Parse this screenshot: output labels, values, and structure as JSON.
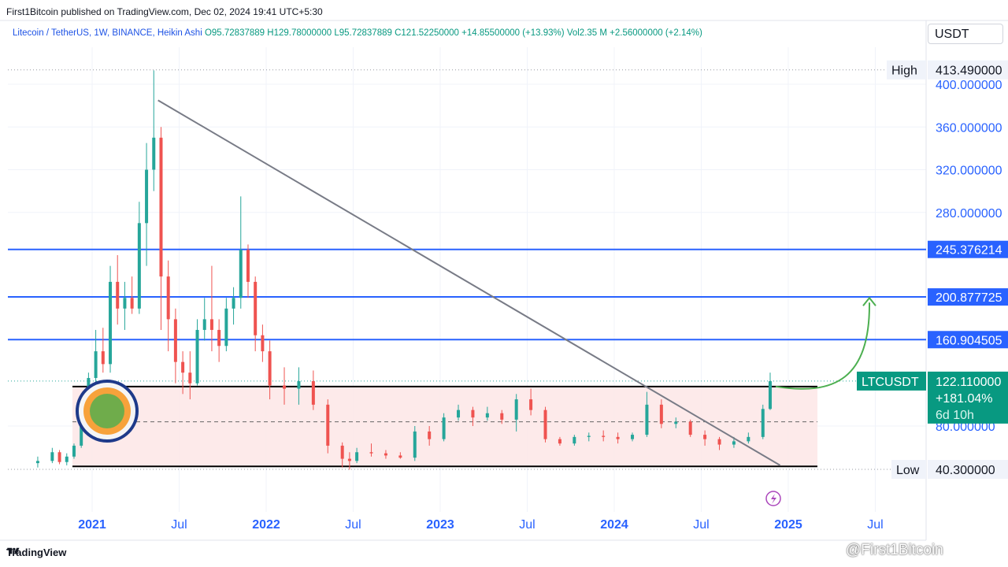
{
  "header": {
    "published": "First1Bitcoin published on TradingView.com, Dec 02, 2024 19:41 UTC+5:30"
  },
  "legend": {
    "symbol": "Litecoin / TetherUS, 1W, BINANCE, Heikin Ashi",
    "open": "O95.72837889",
    "high": "H129.78000000",
    "low": "L95.72837889",
    "close": "C121.52250000",
    "change": "+14.85500000 (+13.93%)",
    "volume": "Vol2.35 M",
    "vol_change": "+2.56000000 (+2.14%)"
  },
  "currency": "USDT",
  "footer": {
    "brand": "TradingView"
  },
  "watermark": "@First1Bitcoin",
  "chart_data": {
    "type": "candlestick",
    "style": "Heikin Ashi",
    "symbol": "LTCUSDT",
    "ylim": [
      30,
      420
    ],
    "xlim": [
      "2020-09",
      "2025-08"
    ],
    "y_ticks": [
      "400.000000",
      "360.000000",
      "320.000000",
      "280.000000",
      "80.000000"
    ],
    "y_tick_values": [
      400,
      360,
      320,
      280,
      80
    ],
    "x_ticks": [
      {
        "label": "2021",
        "date": "2021-01",
        "bold": true
      },
      {
        "label": "Jul",
        "date": "2021-07",
        "bold": false
      },
      {
        "label": "2022",
        "date": "2022-01",
        "bold": true
      },
      {
        "label": "Jul",
        "date": "2022-07",
        "bold": false
      },
      {
        "label": "2023",
        "date": "2023-01",
        "bold": true
      },
      {
        "label": "Jul",
        "date": "2023-07",
        "bold": false
      },
      {
        "label": "2024",
        "date": "2024-01",
        "bold": true
      },
      {
        "label": "Jul",
        "date": "2024-07",
        "bold": false
      },
      {
        "label": "2025",
        "date": "2025-01",
        "bold": true
      },
      {
        "label": "Jul",
        "date": "2025-07",
        "bold": false
      }
    ],
    "high": {
      "label": "High",
      "value": "413.490000",
      "num": 413.49
    },
    "low": {
      "label": "Low",
      "value": "40.300000",
      "num": 40.3
    },
    "horizontal_levels": [
      {
        "value": 245.376214,
        "label": "245.376214"
      },
      {
        "value": 200.877725,
        "label": "200.877725"
      },
      {
        "value": 160.904505,
        "label": "160.904505"
      }
    ],
    "current": {
      "symbol": "LTCUSDT",
      "price": "122.110000",
      "price_num": 122.11,
      "change_pct": "+181.04%",
      "countdown": "6d 10h"
    },
    "range_box": {
      "top": 117,
      "bottom": 43,
      "mid": 84,
      "start": "2020-12",
      "end": "2025-02"
    },
    "trendline": {
      "start": [
        "2021-05",
        385
      ],
      "end": [
        "2024-12",
        44
      ]
    },
    "projection": {
      "from": [
        "2024-11",
        117
      ],
      "to": [
        "2025-05",
        200
      ]
    },
    "candles": [
      {
        "d": "2020-09",
        "o": 46,
        "h": 52,
        "l": 42,
        "c": 48
      },
      {
        "d": "2020-10",
        "o": 48,
        "h": 60,
        "l": 46,
        "c": 56
      },
      {
        "d": "2020-10",
        "o": 56,
        "h": 58,
        "l": 45,
        "c": 47
      },
      {
        "d": "2020-11",
        "o": 47,
        "h": 55,
        "l": 44,
        "c": 52
      },
      {
        "d": "2020-11",
        "o": 52,
        "h": 64,
        "l": 50,
        "c": 62
      },
      {
        "d": "2020-12",
        "o": 62,
        "h": 92,
        "l": 60,
        "c": 88
      },
      {
        "d": "2020-12",
        "o": 88,
        "h": 130,
        "l": 80,
        "c": 125
      },
      {
        "d": "2021-01",
        "o": 125,
        "h": 170,
        "l": 110,
        "c": 150
      },
      {
        "d": "2021-01",
        "o": 150,
        "h": 172,
        "l": 130,
        "c": 138
      },
      {
        "d": "2021-02",
        "o": 138,
        "h": 230,
        "l": 130,
        "c": 215
      },
      {
        "d": "2021-02",
        "o": 215,
        "h": 240,
        "l": 175,
        "c": 190
      },
      {
        "d": "2021-03",
        "o": 190,
        "h": 215,
        "l": 170,
        "c": 200
      },
      {
        "d": "2021-03",
        "o": 200,
        "h": 220,
        "l": 185,
        "c": 190
      },
      {
        "d": "2021-04",
        "o": 190,
        "h": 290,
        "l": 185,
        "c": 270
      },
      {
        "d": "2021-04",
        "o": 270,
        "h": 345,
        "l": 230,
        "c": 320
      },
      {
        "d": "2021-05",
        "o": 320,
        "h": 413,
        "l": 300,
        "c": 350
      },
      {
        "d": "2021-05",
        "o": 350,
        "h": 360,
        "l": 170,
        "c": 220
      },
      {
        "d": "2021-06",
        "o": 220,
        "h": 235,
        "l": 150,
        "c": 180
      },
      {
        "d": "2021-06",
        "o": 180,
        "h": 190,
        "l": 120,
        "c": 140
      },
      {
        "d": "2021-07",
        "o": 140,
        "h": 150,
        "l": 110,
        "c": 130
      },
      {
        "d": "2021-07",
        "o": 130,
        "h": 150,
        "l": 105,
        "c": 120
      },
      {
        "d": "2021-08",
        "o": 120,
        "h": 180,
        "l": 118,
        "c": 170
      },
      {
        "d": "2021-08",
        "o": 170,
        "h": 200,
        "l": 160,
        "c": 180
      },
      {
        "d": "2021-09",
        "o": 180,
        "h": 230,
        "l": 150,
        "c": 170
      },
      {
        "d": "2021-09",
        "o": 170,
        "h": 180,
        "l": 140,
        "c": 155
      },
      {
        "d": "2021-10",
        "o": 155,
        "h": 200,
        "l": 150,
        "c": 190
      },
      {
        "d": "2021-10",
        "o": 190,
        "h": 210,
        "l": 175,
        "c": 200
      },
      {
        "d": "2021-11",
        "o": 200,
        "h": 295,
        "l": 190,
        "c": 245
      },
      {
        "d": "2021-11",
        "o": 245,
        "h": 250,
        "l": 200,
        "c": 215
      },
      {
        "d": "2021-12",
        "o": 215,
        "h": 220,
        "l": 150,
        "c": 165
      },
      {
        "d": "2021-12",
        "o": 165,
        "h": 175,
        "l": 140,
        "c": 150
      },
      {
        "d": "2022-01",
        "o": 150,
        "h": 160,
        "l": 105,
        "c": 118
      },
      {
        "d": "2022-02",
        "o": 118,
        "h": 135,
        "l": 100,
        "c": 115
      },
      {
        "d": "2022-03",
        "o": 115,
        "h": 135,
        "l": 100,
        "c": 122
      },
      {
        "d": "2022-04",
        "o": 122,
        "h": 132,
        "l": 95,
        "c": 100
      },
      {
        "d": "2022-05",
        "o": 100,
        "h": 105,
        "l": 55,
        "c": 62
      },
      {
        "d": "2022-06",
        "o": 62,
        "h": 65,
        "l": 42,
        "c": 50
      },
      {
        "d": "2022-06",
        "o": 50,
        "h": 56,
        "l": 40,
        "c": 48
      },
      {
        "d": "2022-07",
        "o": 48,
        "h": 60,
        "l": 46,
        "c": 56
      },
      {
        "d": "2022-08",
        "o": 56,
        "h": 64,
        "l": 52,
        "c": 55
      },
      {
        "d": "2022-09",
        "o": 55,
        "h": 58,
        "l": 50,
        "c": 53
      },
      {
        "d": "2022-10",
        "o": 53,
        "h": 56,
        "l": 50,
        "c": 51
      },
      {
        "d": "2022-11",
        "o": 51,
        "h": 80,
        "l": 48,
        "c": 75
      },
      {
        "d": "2022-12",
        "o": 75,
        "h": 80,
        "l": 62,
        "c": 68
      },
      {
        "d": "2023-01",
        "o": 68,
        "h": 92,
        "l": 66,
        "c": 88
      },
      {
        "d": "2023-02",
        "o": 88,
        "h": 100,
        "l": 85,
        "c": 95
      },
      {
        "d": "2023-03",
        "o": 95,
        "h": 98,
        "l": 80,
        "c": 88
      },
      {
        "d": "2023-04",
        "o": 88,
        "h": 98,
        "l": 85,
        "c": 92
      },
      {
        "d": "2023-05",
        "o": 92,
        "h": 95,
        "l": 82,
        "c": 86
      },
      {
        "d": "2023-06",
        "o": 86,
        "h": 110,
        "l": 75,
        "c": 105
      },
      {
        "d": "2023-07",
        "o": 105,
        "h": 115,
        "l": 90,
        "c": 95
      },
      {
        "d": "2023-08",
        "o": 95,
        "h": 98,
        "l": 65,
        "c": 68
      },
      {
        "d": "2023-09",
        "o": 68,
        "h": 70,
        "l": 62,
        "c": 64
      },
      {
        "d": "2023-10",
        "o": 64,
        "h": 72,
        "l": 62,
        "c": 70
      },
      {
        "d": "2023-11",
        "o": 70,
        "h": 74,
        "l": 66,
        "c": 71
      },
      {
        "d": "2023-12",
        "o": 71,
        "h": 76,
        "l": 66,
        "c": 70
      },
      {
        "d": "2024-01",
        "o": 70,
        "h": 74,
        "l": 64,
        "c": 68
      },
      {
        "d": "2024-02",
        "o": 68,
        "h": 74,
        "l": 66,
        "c": 72
      },
      {
        "d": "2024-03",
        "o": 72,
        "h": 112,
        "l": 70,
        "c": 100
      },
      {
        "d": "2024-04",
        "o": 100,
        "h": 105,
        "l": 78,
        "c": 82
      },
      {
        "d": "2024-05",
        "o": 82,
        "h": 88,
        "l": 78,
        "c": 84
      },
      {
        "d": "2024-06",
        "o": 84,
        "h": 86,
        "l": 70,
        "c": 72
      },
      {
        "d": "2024-07",
        "o": 72,
        "h": 76,
        "l": 62,
        "c": 68
      },
      {
        "d": "2024-08",
        "o": 68,
        "h": 70,
        "l": 58,
        "c": 63
      },
      {
        "d": "2024-09",
        "o": 63,
        "h": 70,
        "l": 60,
        "c": 66
      },
      {
        "d": "2024-10",
        "o": 66,
        "h": 74,
        "l": 64,
        "c": 70
      },
      {
        "d": "2024-11",
        "o": 70,
        "h": 100,
        "l": 68,
        "c": 96
      },
      {
        "d": "2024-11",
        "o": 96,
        "h": 130,
        "l": 95,
        "c": 122
      }
    ]
  }
}
